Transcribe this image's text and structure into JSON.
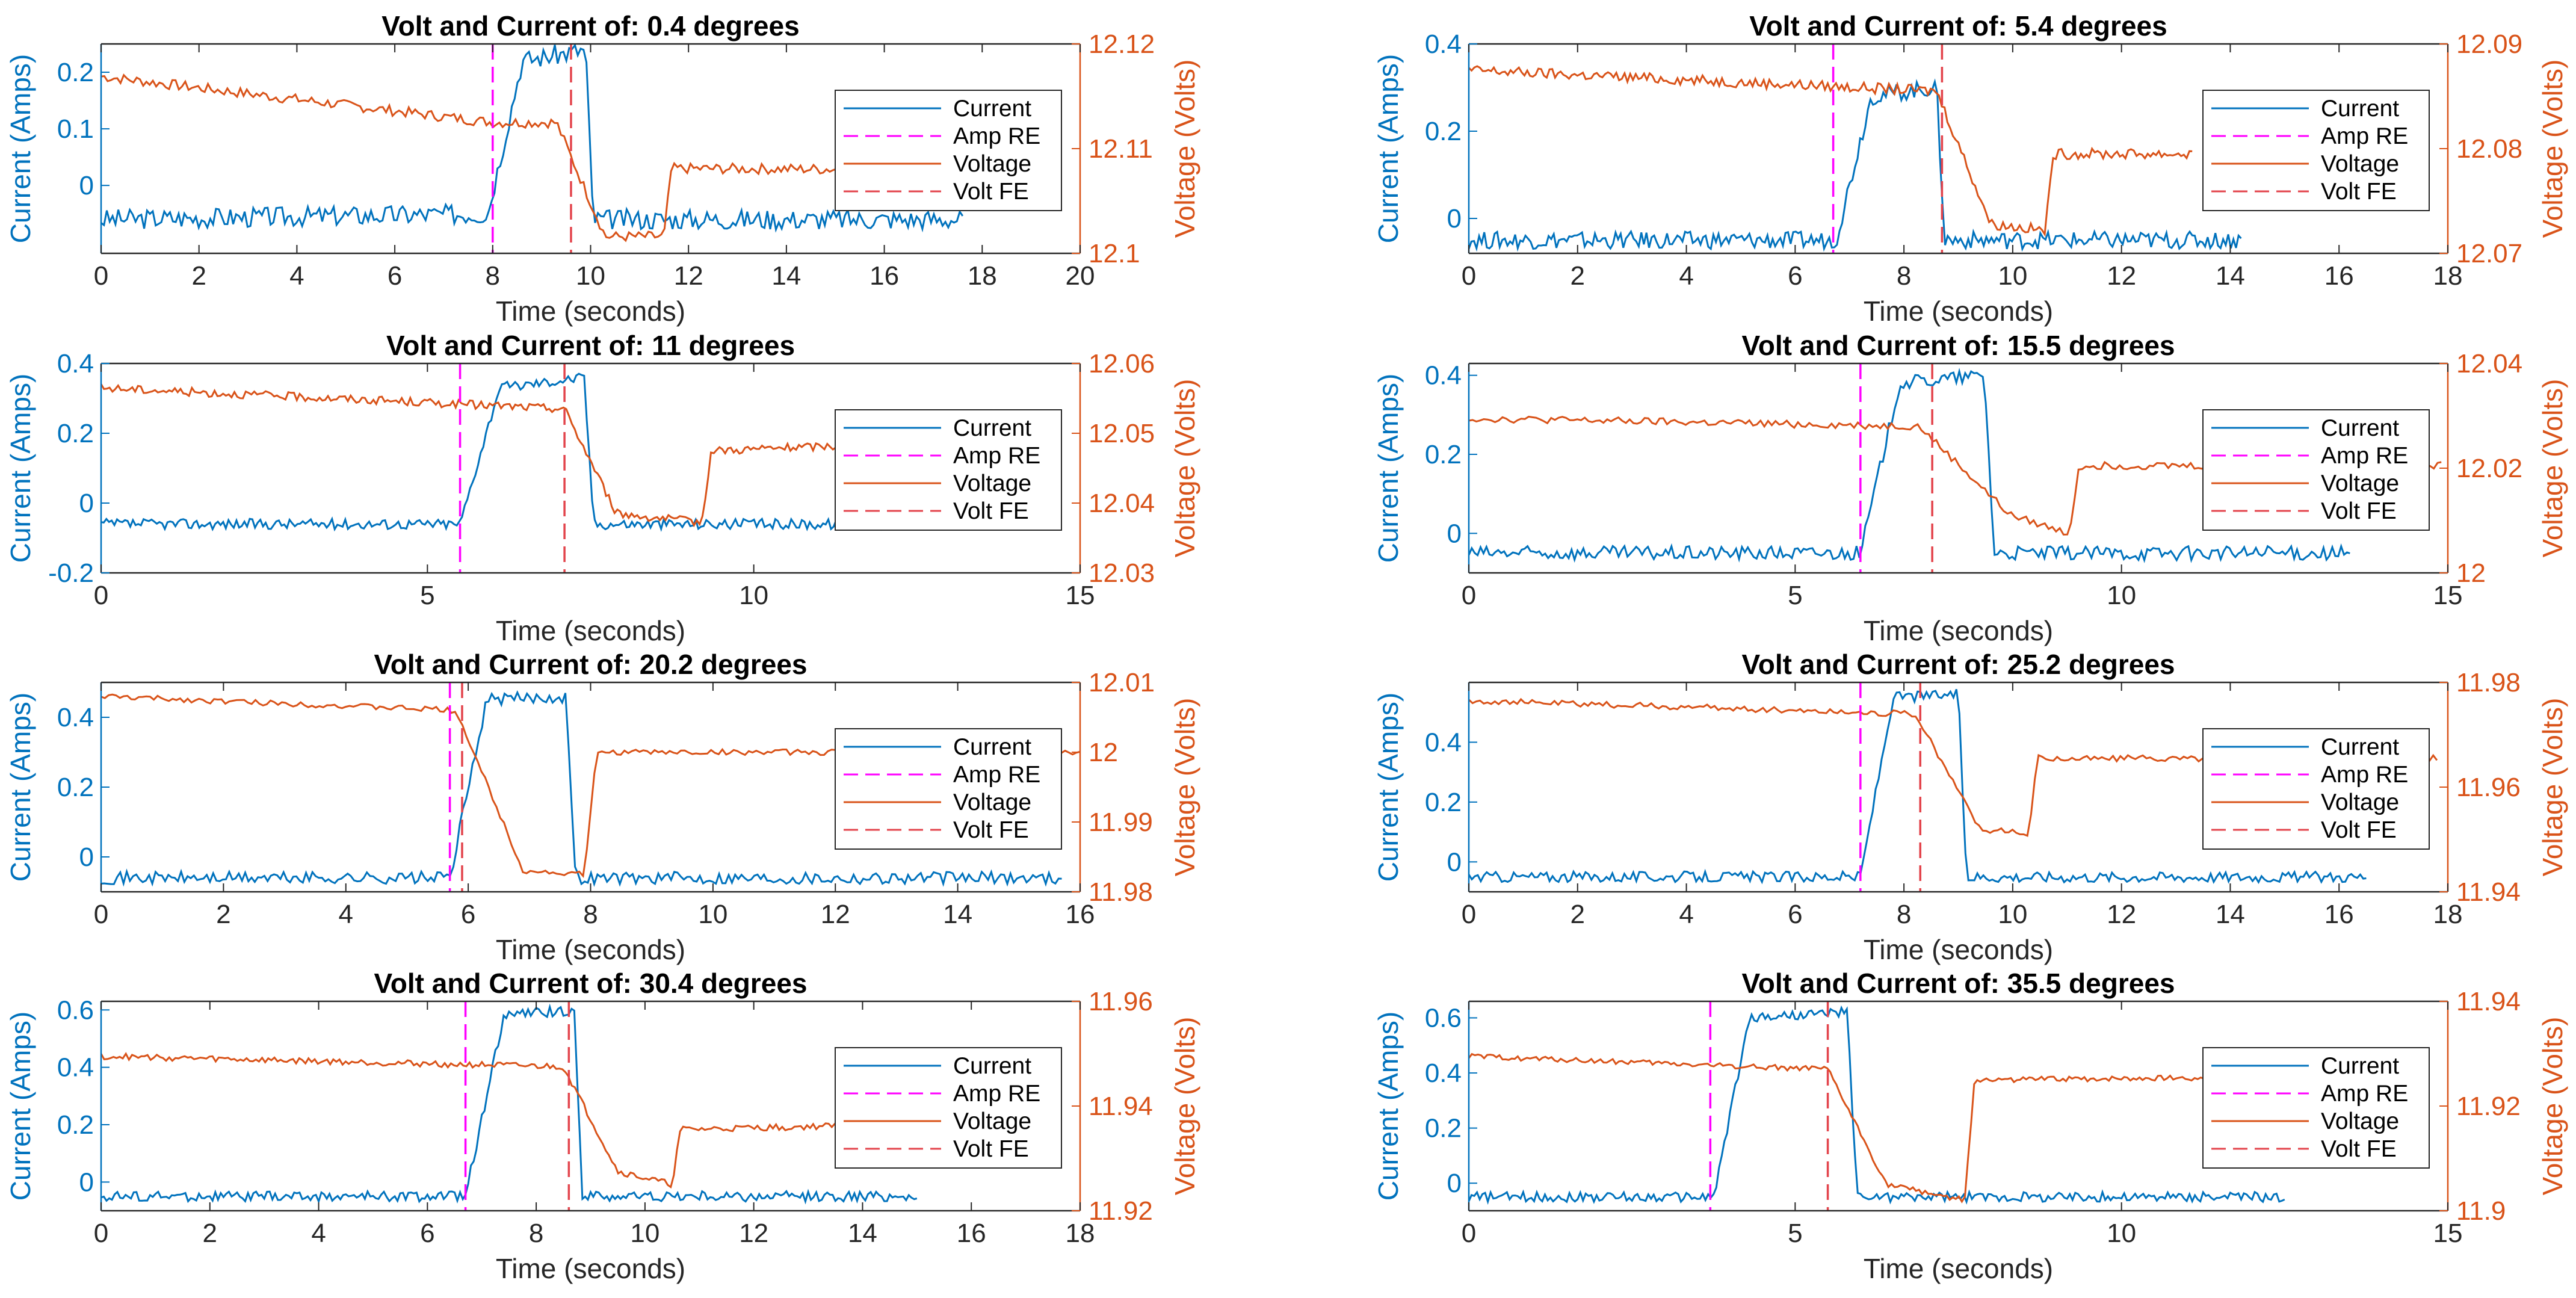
{
  "figure": {
    "colors": {
      "current": "#0072BD",
      "voltage": "#D95319",
      "amp_re": "#FF00FF",
      "volt_fe": "#E3434B",
      "axis": "#262626",
      "left_axis": "#0072BD",
      "right_axis": "#D95319"
    }
  },
  "chart_data": [
    {
      "type": "line",
      "title": "Volt and Current of: 0.4 degrees",
      "xlabel": "Time (seconds)",
      "ylabel_left": "Current (Amps)",
      "ylabel_right": "Voltage (Volts)",
      "xlim": [
        0,
        20
      ],
      "xticks": [
        0,
        2,
        4,
        6,
        8,
        10,
        12,
        14,
        16,
        18,
        20
      ],
      "ylim_left": [
        -0.12,
        0.25
      ],
      "yticks_left": [
        0,
        0.1,
        0.2
      ],
      "ylim_right": [
        12.1,
        12.12
      ],
      "yticks_right": [
        12.1,
        12.11,
        12.12
      ],
      "legend": [
        "Current",
        "Amp RE",
        "Voltage",
        "Volt FE"
      ],
      "legend_position": "right",
      "amp_re": 8.0,
      "volt_fe": 9.6,
      "current": {
        "x_end": 17.6,
        "segments": [
          [
            0,
            -0.06
          ],
          [
            7.9,
            -0.05
          ],
          [
            8.6,
            0.22
          ],
          [
            9.9,
            0.24
          ],
          [
            10.05,
            -0.06
          ],
          [
            17.6,
            -0.06
          ]
        ],
        "noise": 0.018
      },
      "voltage": {
        "x_end": 17.2,
        "segments": [
          [
            0,
            12.1169
          ],
          [
            8.0,
            12.1125
          ],
          [
            9.3,
            12.1125
          ],
          [
            10.3,
            12.1016
          ],
          [
            11.5,
            12.1016
          ],
          [
            11.65,
            12.1081
          ],
          [
            17.2,
            12.108
          ]
        ],
        "noise": 0.0005
      }
    },
    {
      "type": "line",
      "title": "Volt and Current of: 5.4 degrees",
      "xlabel": "Time (seconds)",
      "ylabel_left": "Current (Amps)",
      "ylabel_right": "Voltage (Volts)",
      "xlim": [
        0,
        18
      ],
      "xticks": [
        0,
        2,
        4,
        6,
        8,
        10,
        12,
        14,
        16,
        18
      ],
      "ylim_left": [
        -0.08,
        0.4
      ],
      "yticks_left": [
        0,
        0.2,
        0.4
      ],
      "ylim_right": [
        12.07,
        12.09
      ],
      "yticks_right": [
        12.07,
        12.08,
        12.09
      ],
      "legend": [
        "Current",
        "Amp RE",
        "Voltage",
        "Volt FE"
      ],
      "legend_position": "right",
      "amp_re": 6.7,
      "volt_fe": 8.7,
      "current": {
        "x_end": 14.2,
        "segments": [
          [
            0,
            -0.05
          ],
          [
            6.75,
            -0.05
          ],
          [
            7.4,
            0.28
          ],
          [
            8.6,
            0.3
          ],
          [
            8.75,
            -0.05
          ],
          [
            14.2,
            -0.05
          ]
        ],
        "noise": 0.02
      },
      "voltage": {
        "x_end": 13.3,
        "segments": [
          [
            0,
            12.0875
          ],
          [
            8.6,
            12.0855
          ],
          [
            9.6,
            12.0728
          ],
          [
            10.6,
            12.0722
          ],
          [
            10.75,
            12.0795
          ],
          [
            13.3,
            12.0795
          ]
        ],
        "noise": 0.0005
      }
    },
    {
      "type": "line",
      "title": "Volt and Current of: 11 degrees",
      "xlabel": "Time (seconds)",
      "ylabel_left": "Current (Amps)",
      "ylabel_right": "Voltage (Volts)",
      "xlim": [
        0,
        15
      ],
      "xticks": [
        0,
        5,
        10,
        15
      ],
      "ylim_left": [
        -0.2,
        0.4
      ],
      "yticks_left": [
        -0.2,
        0,
        0.2,
        0.4
      ],
      "ylim_right": [
        12.03,
        12.06
      ],
      "yticks_right": [
        12.03,
        12.04,
        12.05,
        12.06
      ],
      "legend": [
        "Current",
        "Amp RE",
        "Voltage",
        "Volt FE"
      ],
      "legend_position": "right",
      "amp_re": 5.5,
      "volt_fe": 7.1,
      "current": {
        "x_end": 12.2,
        "segments": [
          [
            0,
            -0.06
          ],
          [
            5.5,
            -0.06
          ],
          [
            6.1,
            0.33
          ],
          [
            7.4,
            0.36
          ],
          [
            7.55,
            -0.06
          ],
          [
            12.2,
            -0.06
          ]
        ],
        "noise": 0.015
      },
      "voltage": {
        "x_end": 11.3,
        "segments": [
          [
            0,
            12.0565
          ],
          [
            7.1,
            12.0535
          ],
          [
            7.9,
            12.0385
          ],
          [
            9.2,
            12.0372
          ],
          [
            9.35,
            12.0475
          ],
          [
            11.3,
            12.0482
          ]
        ],
        "noise": 0.0006
      }
    },
    {
      "type": "line",
      "title": "Volt and Current of: 15.5 degrees",
      "xlabel": "Time (seconds)",
      "ylabel_left": "Current (Amps)",
      "ylabel_right": "Voltage (Volts)",
      "xlim": [
        0,
        15
      ],
      "xticks": [
        0,
        5,
        10,
        15
      ],
      "ylim_left": [
        -0.1,
        0.43
      ],
      "yticks_left": [
        0,
        0.2,
        0.4
      ],
      "ylim_right": [
        12,
        12.04
      ],
      "yticks_right": [
        12,
        12.02,
        12.04
      ],
      "legend": [
        "Current",
        "Amp RE",
        "Voltage",
        "Volt FE"
      ],
      "legend_position": "right",
      "amp_re": 6.0,
      "volt_fe": 7.1,
      "current": {
        "x_end": 13.5,
        "segments": [
          [
            0,
            -0.05
          ],
          [
            6.0,
            -0.05
          ],
          [
            6.6,
            0.38
          ],
          [
            7.9,
            0.4
          ],
          [
            8.05,
            -0.05
          ],
          [
            13.5,
            -0.05
          ]
        ],
        "noise": 0.018
      },
      "voltage": {
        "x_end": 14.9,
        "segments": [
          [
            0,
            12.0295
          ],
          [
            6.9,
            12.028
          ],
          [
            8.3,
            12.011
          ],
          [
            9.2,
            12.0075
          ],
          [
            9.35,
            12.0205
          ],
          [
            14.9,
            12.0205
          ]
        ],
        "noise": 0.0007
      }
    },
    {
      "type": "line",
      "title": "Volt and Current of: 20.2 degrees",
      "xlabel": "Time (seconds)",
      "ylabel_left": "Current (Amps)",
      "ylabel_right": "Voltage (Volts)",
      "xlim": [
        0,
        16
      ],
      "xticks": [
        0,
        2,
        4,
        6,
        8,
        10,
        12,
        14,
        16
      ],
      "ylim_left": [
        -0.1,
        0.5
      ],
      "yticks_left": [
        0,
        0.2,
        0.4
      ],
      "ylim_right": [
        11.98,
        12.01
      ],
      "yticks_right": [
        11.98,
        11.99,
        12,
        12.01
      ],
      "legend": [
        "Current",
        "Amp RE",
        "Voltage",
        "Volt FE"
      ],
      "legend_position": "right",
      "amp_re": 5.7,
      "volt_fe": 5.9,
      "current": {
        "x_end": 15.7,
        "segments": [
          [
            0,
            -0.06
          ],
          [
            5.7,
            -0.06
          ],
          [
            6.3,
            0.45
          ],
          [
            7.6,
            0.46
          ],
          [
            7.75,
            -0.06
          ],
          [
            15.7,
            -0.06
          ]
        ],
        "noise": 0.018
      },
      "voltage": {
        "x_end": 16.0,
        "segments": [
          [
            0,
            12.008
          ],
          [
            5.8,
            12.006
          ],
          [
            6.9,
            11.983
          ],
          [
            7.9,
            11.9825
          ],
          [
            8.1,
            12.0
          ],
          [
            16.0,
            12.0
          ]
        ],
        "noise": 0.0004
      }
    },
    {
      "type": "line",
      "title": "Volt and Current of: 25.2 degrees",
      "xlabel": "Time (seconds)",
      "ylabel_left": "Current (Amps)",
      "ylabel_right": "Voltage (Volts)",
      "xlim": [
        0,
        18
      ],
      "xticks": [
        0,
        2,
        4,
        6,
        8,
        10,
        12,
        14,
        16,
        18
      ],
      "ylim_left": [
        -0.1,
        0.6
      ],
      "yticks_left": [
        0,
        0.2,
        0.4
      ],
      "ylim_right": [
        11.94,
        11.98
      ],
      "yticks_right": [
        11.94,
        11.96,
        11.98
      ],
      "legend": [
        "Current",
        "Amp RE",
        "Voltage",
        "Volt FE"
      ],
      "legend_position": "right",
      "amp_re": 7.2,
      "volt_fe": 8.3,
      "current": {
        "x_end": 16.5,
        "segments": [
          [
            0,
            -0.05
          ],
          [
            7.2,
            -0.05
          ],
          [
            7.8,
            0.55
          ],
          [
            9.0,
            0.56
          ],
          [
            9.15,
            -0.05
          ],
          [
            16.5,
            -0.05
          ]
        ],
        "noise": 0.018
      },
      "voltage": {
        "x_end": 17.8,
        "segments": [
          [
            0,
            11.9765
          ],
          [
            8.2,
            11.974
          ],
          [
            9.4,
            11.952
          ],
          [
            10.3,
            11.951
          ],
          [
            10.45,
            11.9655
          ],
          [
            17.8,
            11.9655
          ]
        ],
        "noise": 0.0006
      }
    },
    {
      "type": "line",
      "title": "Volt and Current of: 30.4 degrees",
      "xlabel": "Time (seconds)",
      "ylabel_left": "Current (Amps)",
      "ylabel_right": "Voltage (Volts)",
      "xlim": [
        0,
        18
      ],
      "xticks": [
        0,
        2,
        4,
        6,
        8,
        10,
        12,
        14,
        16,
        18
      ],
      "ylim_left": [
        -0.1,
        0.63
      ],
      "yticks_left": [
        0,
        0.2,
        0.4,
        0.6
      ],
      "ylim_right": [
        11.92,
        11.96
      ],
      "yticks_right": [
        11.92,
        11.94,
        11.96
      ],
      "legend": [
        "Current",
        "Amp RE",
        "Voltage",
        "Volt FE"
      ],
      "legend_position": "right",
      "amp_re": 6.7,
      "volt_fe": 8.6,
      "current": {
        "x_end": 15.0,
        "segments": [
          [
            0,
            -0.05
          ],
          [
            6.7,
            -0.05
          ],
          [
            7.4,
            0.58
          ],
          [
            8.7,
            0.6
          ],
          [
            8.85,
            -0.05
          ],
          [
            15.0,
            -0.05
          ]
        ],
        "noise": 0.018
      },
      "voltage": {
        "x_end": 14.8,
        "segments": [
          [
            0,
            11.9495
          ],
          [
            8.5,
            11.9475
          ],
          [
            9.5,
            11.9275
          ],
          [
            10.5,
            11.925
          ],
          [
            10.65,
            11.9355
          ],
          [
            14.8,
            11.9365
          ]
        ],
        "noise": 0.0006
      }
    },
    {
      "type": "line",
      "title": "Volt and Current of: 35.5 degrees",
      "xlabel": "Time (seconds)",
      "ylabel_left": "Current (Amps)",
      "ylabel_right": "Voltage (Volts)",
      "xlim": [
        0,
        15
      ],
      "xticks": [
        0,
        5,
        10,
        15
      ],
      "ylim_left": [
        -0.1,
        0.66
      ],
      "yticks_left": [
        0,
        0.2,
        0.4,
        0.6
      ],
      "ylim_right": [
        11.9,
        11.94
      ],
      "yticks_right": [
        11.9,
        11.92,
        11.94
      ],
      "legend": [
        "Current",
        "Amp RE",
        "Voltage",
        "Volt FE"
      ],
      "legend_position": "right",
      "amp_re": 3.7,
      "volt_fe": 5.5,
      "current": {
        "x_end": 12.5,
        "segments": [
          [
            0,
            -0.05
          ],
          [
            3.75,
            -0.05
          ],
          [
            4.3,
            0.6
          ],
          [
            5.8,
            0.62
          ],
          [
            5.95,
            -0.05
          ],
          [
            12.5,
            -0.05
          ]
        ],
        "noise": 0.018
      },
      "voltage": {
        "x_end": 12.2,
        "segments": [
          [
            0,
            11.9295
          ],
          [
            5.5,
            11.927
          ],
          [
            6.4,
            11.905
          ],
          [
            7.6,
            11.902
          ],
          [
            7.75,
            11.925
          ],
          [
            12.2,
            11.9255
          ]
        ],
        "noise": 0.0005
      }
    }
  ]
}
